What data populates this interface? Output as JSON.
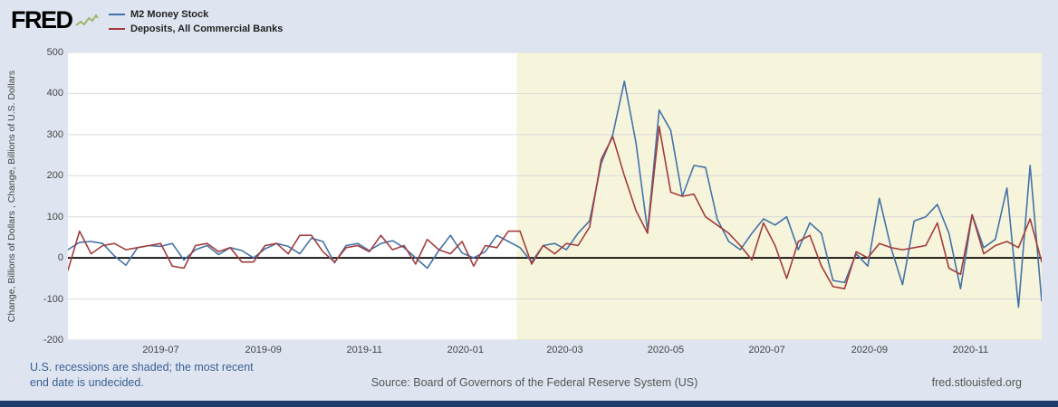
{
  "header": {
    "brand": "FRED"
  },
  "footer": {
    "recession_note_line1": "U.S. recessions are shaded; the most recent",
    "recession_note_line2": "end date is undecided.",
    "source": "Source: Board of Governors of the Federal Reserve System (US)",
    "site_link": "fred.stlouisfed.org"
  },
  "colors": {
    "page_background": "#dee5f0",
    "plot_background": "#ffffff",
    "recession_shade": "#f6f5dc",
    "grid": "#d9d9d9",
    "zero_line": "#000000",
    "axis_text": "#444444",
    "note_text": "#3a5f94",
    "footer_text": "#555555",
    "bottom_bar": "#20396b"
  },
  "chart_data": {
    "type": "line",
    "title": "",
    "xlabel": "",
    "ylabel": "Change, Billions of Dollars , Change, Billions of U.S. Dollars",
    "ylim": [
      -200,
      500
    ],
    "y_ticks": [
      500,
      400,
      300,
      200,
      100,
      0,
      -100,
      -200
    ],
    "x_tick_labels": [
      "2019-07",
      "2019-09",
      "2019-11",
      "2020-01",
      "2020-03",
      "2020-05",
      "2020-07",
      "2020-09",
      "2020-11"
    ],
    "grid": true,
    "legend_position": "top-left",
    "recession": {
      "start_date": "2020-02-01",
      "end_date": "undecided"
    },
    "x_dates": [
      "2019-05-06",
      "2019-05-13",
      "2019-05-20",
      "2019-05-27",
      "2019-06-03",
      "2019-06-10",
      "2019-06-17",
      "2019-06-24",
      "2019-07-01",
      "2019-07-08",
      "2019-07-15",
      "2019-07-22",
      "2019-07-29",
      "2019-08-05",
      "2019-08-12",
      "2019-08-19",
      "2019-08-26",
      "2019-09-02",
      "2019-09-09",
      "2019-09-16",
      "2019-09-23",
      "2019-09-30",
      "2019-10-07",
      "2019-10-14",
      "2019-10-21",
      "2019-10-28",
      "2019-11-04",
      "2019-11-11",
      "2019-11-18",
      "2019-11-25",
      "2019-12-02",
      "2019-12-09",
      "2019-12-16",
      "2019-12-23",
      "2019-12-30",
      "2020-01-06",
      "2020-01-13",
      "2020-01-20",
      "2020-01-27",
      "2020-02-03",
      "2020-02-10",
      "2020-02-17",
      "2020-02-24",
      "2020-03-02",
      "2020-03-09",
      "2020-03-16",
      "2020-03-23",
      "2020-03-30",
      "2020-04-06",
      "2020-04-13",
      "2020-04-20",
      "2020-04-27",
      "2020-05-04",
      "2020-05-11",
      "2020-05-18",
      "2020-05-25",
      "2020-06-01",
      "2020-06-08",
      "2020-06-15",
      "2020-06-22",
      "2020-06-29",
      "2020-07-06",
      "2020-07-13",
      "2020-07-20",
      "2020-07-27",
      "2020-08-03",
      "2020-08-10",
      "2020-08-17",
      "2020-08-24",
      "2020-08-31",
      "2020-09-07",
      "2020-09-14",
      "2020-09-21",
      "2020-09-28",
      "2020-10-05",
      "2020-10-12",
      "2020-10-19",
      "2020-10-26",
      "2020-11-02",
      "2020-11-09",
      "2020-11-16",
      "2020-11-23",
      "2020-11-30",
      "2020-12-07",
      "2020-12-14"
    ],
    "series": [
      {
        "name": "M2 Money Stock",
        "color": "#4572a7",
        "values": [
          20,
          38,
          40,
          35,
          5,
          -18,
          25,
          30,
          28,
          35,
          -5,
          20,
          30,
          8,
          25,
          18,
          0,
          22,
          35,
          28,
          10,
          48,
          40,
          -12,
          30,
          35,
          18,
          35,
          42,
          25,
          0,
          -25,
          18,
          55,
          12,
          0,
          15,
          55,
          40,
          25,
          -10,
          30,
          35,
          20,
          60,
          90,
          230,
          300,
          430,
          280,
          65,
          360,
          310,
          150,
          225,
          220,
          95,
          40,
          20,
          60,
          95,
          80,
          100,
          20,
          85,
          60,
          -55,
          -60,
          10,
          -20,
          145,
          25,
          -65,
          90,
          100,
          130,
          60,
          -75,
          105,
          25,
          45,
          170,
          -120,
          225,
          -105
        ]
      },
      {
        "name": "Deposits, All Commercial Banks",
        "color": "#a33c3c",
        "values": [
          -30,
          65,
          10,
          30,
          35,
          20,
          25,
          30,
          35,
          -20,
          -25,
          30,
          35,
          15,
          25,
          -10,
          -10,
          30,
          35,
          10,
          55,
          55,
          15,
          -10,
          25,
          30,
          15,
          55,
          20,
          30,
          -15,
          45,
          20,
          10,
          40,
          -20,
          30,
          25,
          65,
          65,
          -15,
          30,
          10,
          35,
          30,
          75,
          240,
          295,
          200,
          115,
          60,
          320,
          160,
          150,
          155,
          100,
          80,
          60,
          30,
          -5,
          85,
          30,
          -50,
          40,
          55,
          -20,
          -70,
          -75,
          15,
          0,
          35,
          25,
          20,
          25,
          30,
          85,
          -25,
          -40,
          105,
          10,
          30,
          40,
          25,
          95,
          -10
        ]
      }
    ]
  }
}
